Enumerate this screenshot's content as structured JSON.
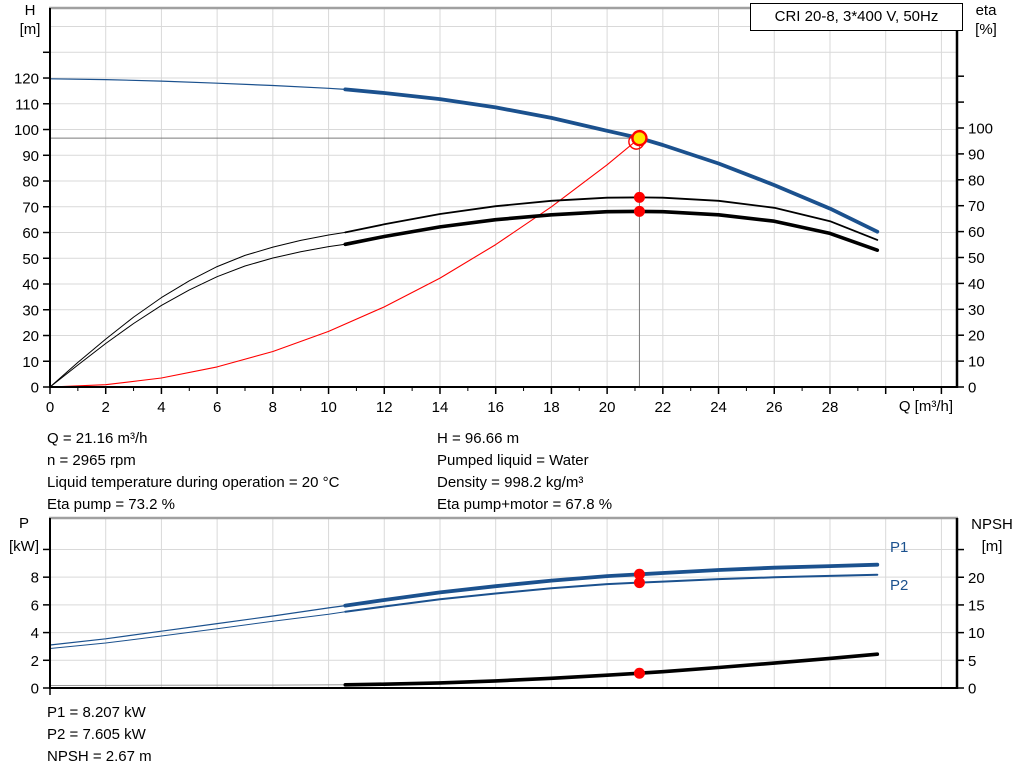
{
  "header": {
    "title_box": "CRI 20-8, 3*400 V, 50Hz"
  },
  "colors": {
    "curve_blue": "#1b518e",
    "curve_black": "#000000",
    "curve_red": "#ff0000",
    "curve_gray": "#9a9a9a",
    "grid": "#d9d9d9",
    "axis": "#000000",
    "frame_top": "#a0a0a0",
    "crosshair": "#7a7a7a",
    "marker_red": "#ff0000",
    "marker_yellow_fill": "#ffe600",
    "label_blue": "#1b518e"
  },
  "top_chart": {
    "left_axis_title": [
      "H",
      "[m]"
    ],
    "right_axis_title": [
      "eta",
      "[%]"
    ],
    "x_axis_title": "Q [m³/h]"
  },
  "bottom_chart": {
    "left_axis_title": [
      "P",
      "[kW]"
    ],
    "right_axis_title": [
      "NPSH",
      "[m]"
    ],
    "p1_label": "P1",
    "p2_label": "P2"
  },
  "info_top": {
    "left": [
      "Q = 21.16 m³/h",
      "n = 2965 rpm",
      "Liquid temperature during operation = 20 °C",
      "Eta pump = 73.2 %"
    ],
    "right": [
      "H = 96.66 m",
      "Pumped liquid = Water",
      "Density = 998.2 kg/m³",
      "Eta pump+motor = 67.8 %"
    ]
  },
  "info_bottom": [
    "P1 = 8.207 kW",
    "P2 = 7.605 kW",
    "NPSH = 2.67 m"
  ],
  "chart_data": [
    {
      "id": "top",
      "type": "line",
      "title": "CRI 20-8, 3*400 V, 50Hz",
      "x": {
        "label": "Q [m³/h]",
        "min": 0,
        "max": 32.56,
        "major_ticks": [
          0,
          2,
          4,
          6,
          8,
          10,
          12,
          14,
          16,
          18,
          20,
          22,
          24,
          26,
          28,
          30,
          32
        ],
        "minor_ticks": [
          1,
          3,
          5,
          7,
          9,
          11,
          13,
          15,
          17,
          19,
          21,
          23,
          25,
          27,
          29,
          31
        ],
        "labeled_ticks": [
          0,
          2,
          4,
          6,
          8,
          10,
          12,
          14,
          16,
          18,
          20,
          22,
          24,
          26,
          28
        ],
        "gridlines": [
          2,
          4,
          6,
          8,
          10,
          12,
          14,
          16,
          18,
          20,
          22,
          24,
          26,
          28,
          30,
          32
        ]
      },
      "y_left": {
        "label": "H [m]",
        "min": 0,
        "max": 147.2,
        "labeled_ticks": [
          0,
          10,
          20,
          30,
          40,
          50,
          60,
          70,
          80,
          90,
          100,
          110,
          120
        ],
        "extra_ticks": [
          130
        ],
        "gridlines": [
          10,
          20,
          30,
          40,
          50,
          60,
          70,
          80,
          90,
          100,
          110,
          120,
          130,
          140
        ]
      },
      "y_right": {
        "label": "eta [%]",
        "min": 0,
        "max": 146.33,
        "labeled_ticks": [
          0,
          10,
          20,
          30,
          40,
          50,
          60,
          70,
          80,
          90,
          100
        ],
        "extra_ticks": [
          110,
          120
        ]
      },
      "crosshair": {
        "q": 21.16,
        "value": 96.66
      },
      "duty_point": {
        "q": 21.16,
        "h": 96.66
      },
      "series": [
        {
          "name": "system-curve",
          "axis": "left",
          "color_key": "curve_red",
          "thin_width": 1.1,
          "thick_width": 1.1,
          "split_q": 999,
          "points": [
            [
              0,
              0
            ],
            [
              2,
              0.9
            ],
            [
              4,
              3.5
            ],
            [
              6,
              7.8
            ],
            [
              8,
              13.8
            ],
            [
              10,
              21.6
            ],
            [
              12,
              31.1
            ],
            [
              14,
              42.3
            ],
            [
              16,
              55.3
            ],
            [
              18,
              70.0
            ],
            [
              20,
              86.3
            ],
            [
              21.16,
              96.66
            ]
          ]
        },
        {
          "name": "eta-pump",
          "axis": "right",
          "color_key": "curve_black",
          "thin_width": 1,
          "thick_width": 1.8,
          "split_q": 10.6,
          "points": [
            [
              0,
              0
            ],
            [
              1,
              9.5
            ],
            [
              2,
              18.5
            ],
            [
              3,
              27
            ],
            [
              4,
              34.5
            ],
            [
              5,
              41
            ],
            [
              6,
              46.5
            ],
            [
              7,
              50.8
            ],
            [
              8,
              54
            ],
            [
              9,
              56.6
            ],
            [
              10,
              58.7
            ],
            [
              10.6,
              59.7
            ],
            [
              12,
              62.8
            ],
            [
              14,
              66.8
            ],
            [
              16,
              69.8
            ],
            [
              18,
              71.9
            ],
            [
              20,
              73.1
            ],
            [
              21.16,
              73.2
            ],
            [
              22,
              73.1
            ],
            [
              24,
              71.9
            ],
            [
              26,
              69.2
            ],
            [
              28,
              64.0
            ],
            [
              29.7,
              56.8
            ]
          ]
        },
        {
          "name": "eta-pump-motor",
          "axis": "right",
          "color_key": "curve_black",
          "thin_width": 1,
          "thick_width": 3.6,
          "split_q": 10.6,
          "points": [
            [
              0,
              0
            ],
            [
              1,
              8.5
            ],
            [
              2,
              16.8
            ],
            [
              3,
              24.5
            ],
            [
              4,
              31.5
            ],
            [
              5,
              37.5
            ],
            [
              6,
              42.6
            ],
            [
              7,
              46.7
            ],
            [
              8,
              49.8
            ],
            [
              9,
              52.2
            ],
            [
              10,
              54.2
            ],
            [
              10.6,
              55.1
            ],
            [
              12,
              58.1
            ],
            [
              14,
              61.8
            ],
            [
              16,
              64.6
            ],
            [
              18,
              66.5
            ],
            [
              20,
              67.7
            ],
            [
              21.16,
              67.8
            ],
            [
              22,
              67.7
            ],
            [
              24,
              66.5
            ],
            [
              26,
              64.0
            ],
            [
              28,
              59.3
            ],
            [
              29.7,
              52.8
            ]
          ]
        },
        {
          "name": "pump-curve-H",
          "axis": "left",
          "color_key": "curve_blue",
          "thin_width": 1.2,
          "thick_width": 3.8,
          "split_q": 10.6,
          "points": [
            [
              0,
              119.7
            ],
            [
              2,
              119.4
            ],
            [
              4,
              118.8
            ],
            [
              6,
              118.0
            ],
            [
              8,
              117.1
            ],
            [
              10,
              116.0
            ],
            [
              10.6,
              115.6
            ],
            [
              12,
              114.2
            ],
            [
              14,
              111.8
            ],
            [
              16,
              108.6
            ],
            [
              18,
              104.5
            ],
            [
              20,
              99.5
            ],
            [
              21.16,
              96.66
            ],
            [
              22,
              94.0
            ],
            [
              24,
              86.8
            ],
            [
              26,
              78.4
            ],
            [
              28,
              69.3
            ],
            [
              29.7,
              60.3
            ]
          ]
        }
      ],
      "markers": [
        {
          "kind": "ring",
          "axis": "left",
          "q": 21.05,
          "value": 95.3
        },
        {
          "kind": "dot",
          "axis": "right",
          "q": 21.16,
          "value": 73.2
        },
        {
          "kind": "dot",
          "axis": "right",
          "q": 21.16,
          "value": 67.8
        },
        {
          "kind": "duty",
          "axis": "left",
          "q": 21.16,
          "value": 96.66
        }
      ]
    },
    {
      "id": "bottom",
      "type": "line",
      "title": "",
      "x": {
        "label": "",
        "min": 0,
        "max": 32.56,
        "major_ticks": [
          0
        ],
        "minor_ticks": [],
        "labeled_ticks": [],
        "gridlines": [
          2,
          4,
          6,
          8,
          10,
          12,
          14,
          16,
          18,
          20,
          22,
          24,
          26,
          28,
          30,
          32
        ]
      },
      "y_left": {
        "label": "P [kW]",
        "min": 0,
        "max": 12.27,
        "labeled_ticks": [
          0,
          2,
          4,
          6,
          8
        ],
        "extra_ticks": [
          10
        ],
        "gridlines": [
          2,
          4,
          6,
          8,
          10
        ]
      },
      "y_right": {
        "label": "NPSH [m]",
        "min": 0,
        "max": 30.7,
        "labeled_ticks": [
          0,
          5,
          10,
          15,
          20
        ],
        "extra_ticks": [
          25
        ]
      },
      "series": [
        {
          "name": "P1",
          "axis": "left",
          "color_key": "curve_blue",
          "thin_width": 1.2,
          "thick_width": 3.8,
          "split_q": 10.6,
          "points": [
            [
              0,
              3.1
            ],
            [
              2,
              3.55
            ],
            [
              4,
              4.1
            ],
            [
              6,
              4.65
            ],
            [
              8,
              5.2
            ],
            [
              10,
              5.78
            ],
            [
              10.6,
              5.95
            ],
            [
              12,
              6.35
            ],
            [
              14,
              6.9
            ],
            [
              16,
              7.35
            ],
            [
              18,
              7.75
            ],
            [
              20,
              8.08
            ],
            [
              21.16,
              8.21
            ],
            [
              22,
              8.3
            ],
            [
              24,
              8.52
            ],
            [
              26,
              8.68
            ],
            [
              28,
              8.8
            ],
            [
              29.7,
              8.9
            ]
          ]
        },
        {
          "name": "P2",
          "axis": "left",
          "color_key": "curve_blue",
          "thin_width": 1,
          "thick_width": 2,
          "split_q": 10.6,
          "points": [
            [
              0,
              2.85
            ],
            [
              2,
              3.25
            ],
            [
              4,
              3.75
            ],
            [
              6,
              4.28
            ],
            [
              8,
              4.82
            ],
            [
              10,
              5.32
            ],
            [
              10.6,
              5.5
            ],
            [
              12,
              5.88
            ],
            [
              14,
              6.4
            ],
            [
              16,
              6.82
            ],
            [
              18,
              7.2
            ],
            [
              20,
              7.5
            ],
            [
              21.16,
              7.61
            ],
            [
              22,
              7.68
            ],
            [
              24,
              7.86
            ],
            [
              26,
              7.99
            ],
            [
              28,
              8.09
            ],
            [
              29.7,
              8.18
            ]
          ]
        },
        {
          "name": "NPSH",
          "axis": "right",
          "color_key": "curve_black",
          "thin_color_key": "curve_gray",
          "thin_width": 1,
          "thick_width": 3.6,
          "split_q": 10.6,
          "points": [
            [
              0,
              0.45
            ],
            [
              4,
              0.48
            ],
            [
              8,
              0.52
            ],
            [
              10.6,
              0.58
            ],
            [
              12,
              0.68
            ],
            [
              14,
              0.92
            ],
            [
              16,
              1.28
            ],
            [
              18,
              1.75
            ],
            [
              20,
              2.32
            ],
            [
              21.16,
              2.67
            ],
            [
              22,
              2.95
            ],
            [
              24,
              3.7
            ],
            [
              26,
              4.5
            ],
            [
              28,
              5.35
            ],
            [
              29.7,
              6.1
            ]
          ]
        }
      ],
      "markers": [
        {
          "kind": "dot",
          "axis": "left",
          "q": 21.16,
          "value": 8.207
        },
        {
          "kind": "dot",
          "axis": "left",
          "q": 21.16,
          "value": 7.605
        },
        {
          "kind": "dot",
          "axis": "right",
          "q": 21.16,
          "value": 2.67
        }
      ]
    }
  ]
}
